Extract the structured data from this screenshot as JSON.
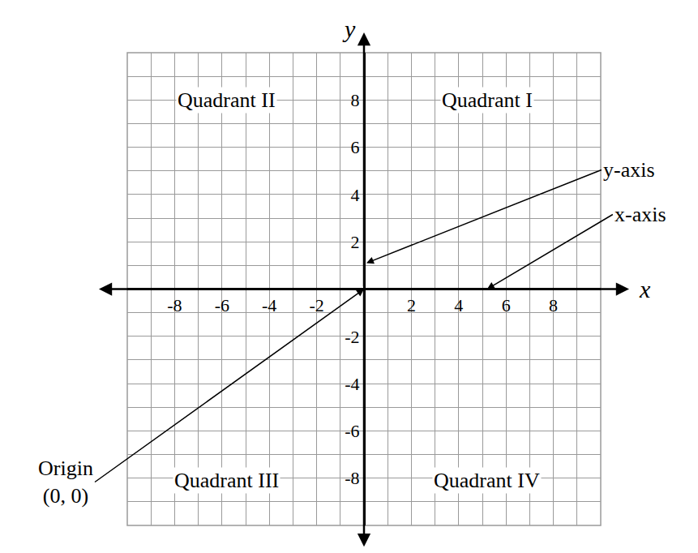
{
  "chart_data": {
    "type": "scatter",
    "x_label": "x",
    "y_label": "y",
    "xlim": [
      -10,
      10
    ],
    "ylim": [
      -10,
      10
    ],
    "xticks": [
      -8,
      -6,
      -4,
      -2,
      2,
      4,
      6,
      8
    ],
    "yticks": [
      -8,
      -6,
      -4,
      -2,
      2,
      4,
      6,
      8
    ],
    "grid": true,
    "annotations": [
      {
        "text": "Quadrant I",
        "x": 5.2,
        "y": 8
      },
      {
        "text": "Quadrant II",
        "x": -5.8,
        "y": 8
      },
      {
        "text": "Quadrant III",
        "x": -5.8,
        "y": -8.1
      },
      {
        "text": "Quadrant IV",
        "x": 5.2,
        "y": -8.1
      },
      {
        "text": "y-axis",
        "x": 0.1,
        "y": 1.1,
        "arrow": true
      },
      {
        "text": "x-axis",
        "x": 5.2,
        "y": 0,
        "arrow": true
      },
      {
        "text": "Origin\n(0, 0)",
        "x": 0,
        "y": 0,
        "arrow": true
      }
    ]
  }
}
